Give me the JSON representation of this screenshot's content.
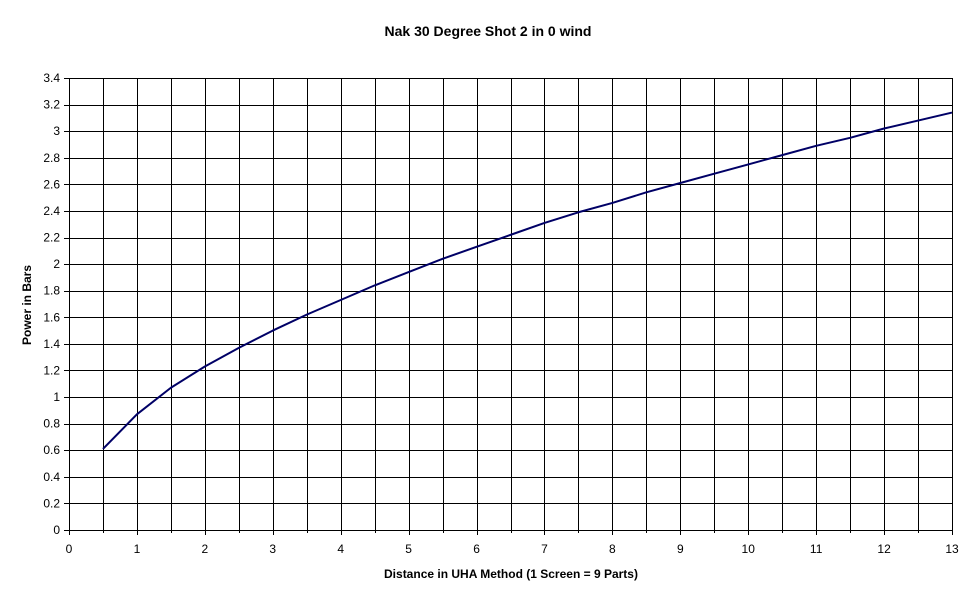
{
  "chart_data": {
    "type": "line",
    "title": "Nak 30 Degree Shot 2 in 0 wind",
    "xlabel": "Distance in UHA Method (1 Screen = 9 Parts)",
    "ylabel": "Power in Bars",
    "xlim": [
      0,
      13
    ],
    "ylim": [
      0,
      3.4
    ],
    "x_ticks": [
      "0",
      "1",
      "2",
      "3",
      "4",
      "5",
      "6",
      "7",
      "8",
      "9",
      "10",
      "11",
      "12",
      "13"
    ],
    "y_ticks": [
      "0",
      "0.2",
      "0.4",
      "0.6",
      "0.8",
      "1",
      "1.2",
      "1.4",
      "1.6",
      "1.8",
      "2",
      "2.2",
      "2.4",
      "2.6",
      "2.8",
      "3",
      "3.2",
      "3.4"
    ],
    "grid": true,
    "legend": "none",
    "series": [
      {
        "color": "#000066",
        "x": [
          0.5,
          1,
          1.5,
          2,
          2.5,
          3,
          3.5,
          4,
          4.5,
          5,
          5.5,
          6,
          6.5,
          7,
          7.5,
          8,
          8.5,
          9,
          9.5,
          10,
          10.5,
          11,
          11.5,
          12,
          12.5,
          13
        ],
        "y": [
          0.61,
          0.87,
          1.07,
          1.23,
          1.37,
          1.5,
          1.62,
          1.73,
          1.84,
          1.94,
          2.04,
          2.13,
          2.22,
          2.31,
          2.39,
          2.46,
          2.54,
          2.61,
          2.68,
          2.75,
          2.82,
          2.89,
          2.95,
          3.02,
          3.08,
          3.14
        ]
      }
    ]
  }
}
